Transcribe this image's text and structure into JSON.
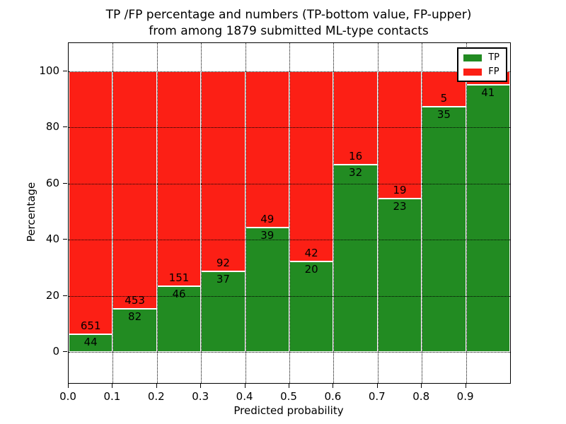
{
  "figure": {
    "title_line1": "TP /FP percentage and numbers (TP-bottom value, FP-upper)",
    "title_line2": "from among 1879 submitted ML-type contacts"
  },
  "chart_data": {
    "type": "bar",
    "stacked": true,
    "title": "TP /FP percentage and numbers (TP-bottom value, FP-upper)\nfrom among 1879 submitted ML-type contacts",
    "total_submitted_contacts": "1879",
    "xlabel": "Predicted probability",
    "ylabel": "Percentage",
    "xlim": [
      0.0,
      1.0
    ],
    "ylim": [
      -11.1,
      110.1
    ],
    "bin_width": 0.1,
    "grid": true,
    "legend_position": "upper right",
    "x_ticks": [
      {
        "value": 0.0,
        "label": "0.0"
      },
      {
        "value": 0.1,
        "label": "0.1"
      },
      {
        "value": 0.2,
        "label": "0.2"
      },
      {
        "value": 0.3,
        "label": "0.3"
      },
      {
        "value": 0.4,
        "label": "0.4"
      },
      {
        "value": 0.5,
        "label": "0.5"
      },
      {
        "value": 0.6,
        "label": "0.6"
      },
      {
        "value": 0.7,
        "label": "0.7"
      },
      {
        "value": 0.8,
        "label": "0.8"
      },
      {
        "value": 0.9,
        "label": "0.9"
      }
    ],
    "y_ticks": [
      {
        "value": 0,
        "label": "0"
      },
      {
        "value": 20,
        "label": "20"
      },
      {
        "value": 40,
        "label": "40"
      },
      {
        "value": 60,
        "label": "60"
      },
      {
        "value": 80,
        "label": "80"
      },
      {
        "value": 100,
        "label": "100"
      }
    ],
    "series": [
      {
        "name": "TP",
        "color": "#228b22"
      },
      {
        "name": "FP",
        "color": "#fc1f15"
      }
    ],
    "bins": [
      {
        "range_start": 0.0,
        "tp_label": "44",
        "fp_label": "651",
        "tp_pct": 6.33,
        "fp_pct": 93.67
      },
      {
        "range_start": 0.1,
        "tp_label": "82",
        "fp_label": "453",
        "tp_pct": 15.33,
        "fp_pct": 84.67
      },
      {
        "range_start": 0.2,
        "tp_label": "46",
        "fp_label": "151",
        "tp_pct": 23.35,
        "fp_pct": 76.65
      },
      {
        "range_start": 0.3,
        "tp_label": "37",
        "fp_label": "92",
        "tp_pct": 28.68,
        "fp_pct": 71.32
      },
      {
        "range_start": 0.4,
        "tp_label": "39",
        "fp_label": "49",
        "tp_pct": 44.32,
        "fp_pct": 55.68
      },
      {
        "range_start": 0.5,
        "tp_label": "20",
        "fp_label": "42",
        "tp_pct": 32.26,
        "fp_pct": 67.74
      },
      {
        "range_start": 0.6,
        "tp_label": "32",
        "fp_label": "16",
        "tp_pct": 66.67,
        "fp_pct": 33.33
      },
      {
        "range_start": 0.7,
        "tp_label": "23",
        "fp_label": "19",
        "tp_pct": 54.76,
        "fp_pct": 45.24
      },
      {
        "range_start": 0.8,
        "tp_label": "35",
        "fp_label": "5",
        "tp_pct": 87.5,
        "fp_pct": 12.5
      },
      {
        "range_start": 0.9,
        "tp_label": "41",
        "fp_label": "",
        "tp_pct": 95.3,
        "fp_pct": 4.7
      }
    ]
  }
}
